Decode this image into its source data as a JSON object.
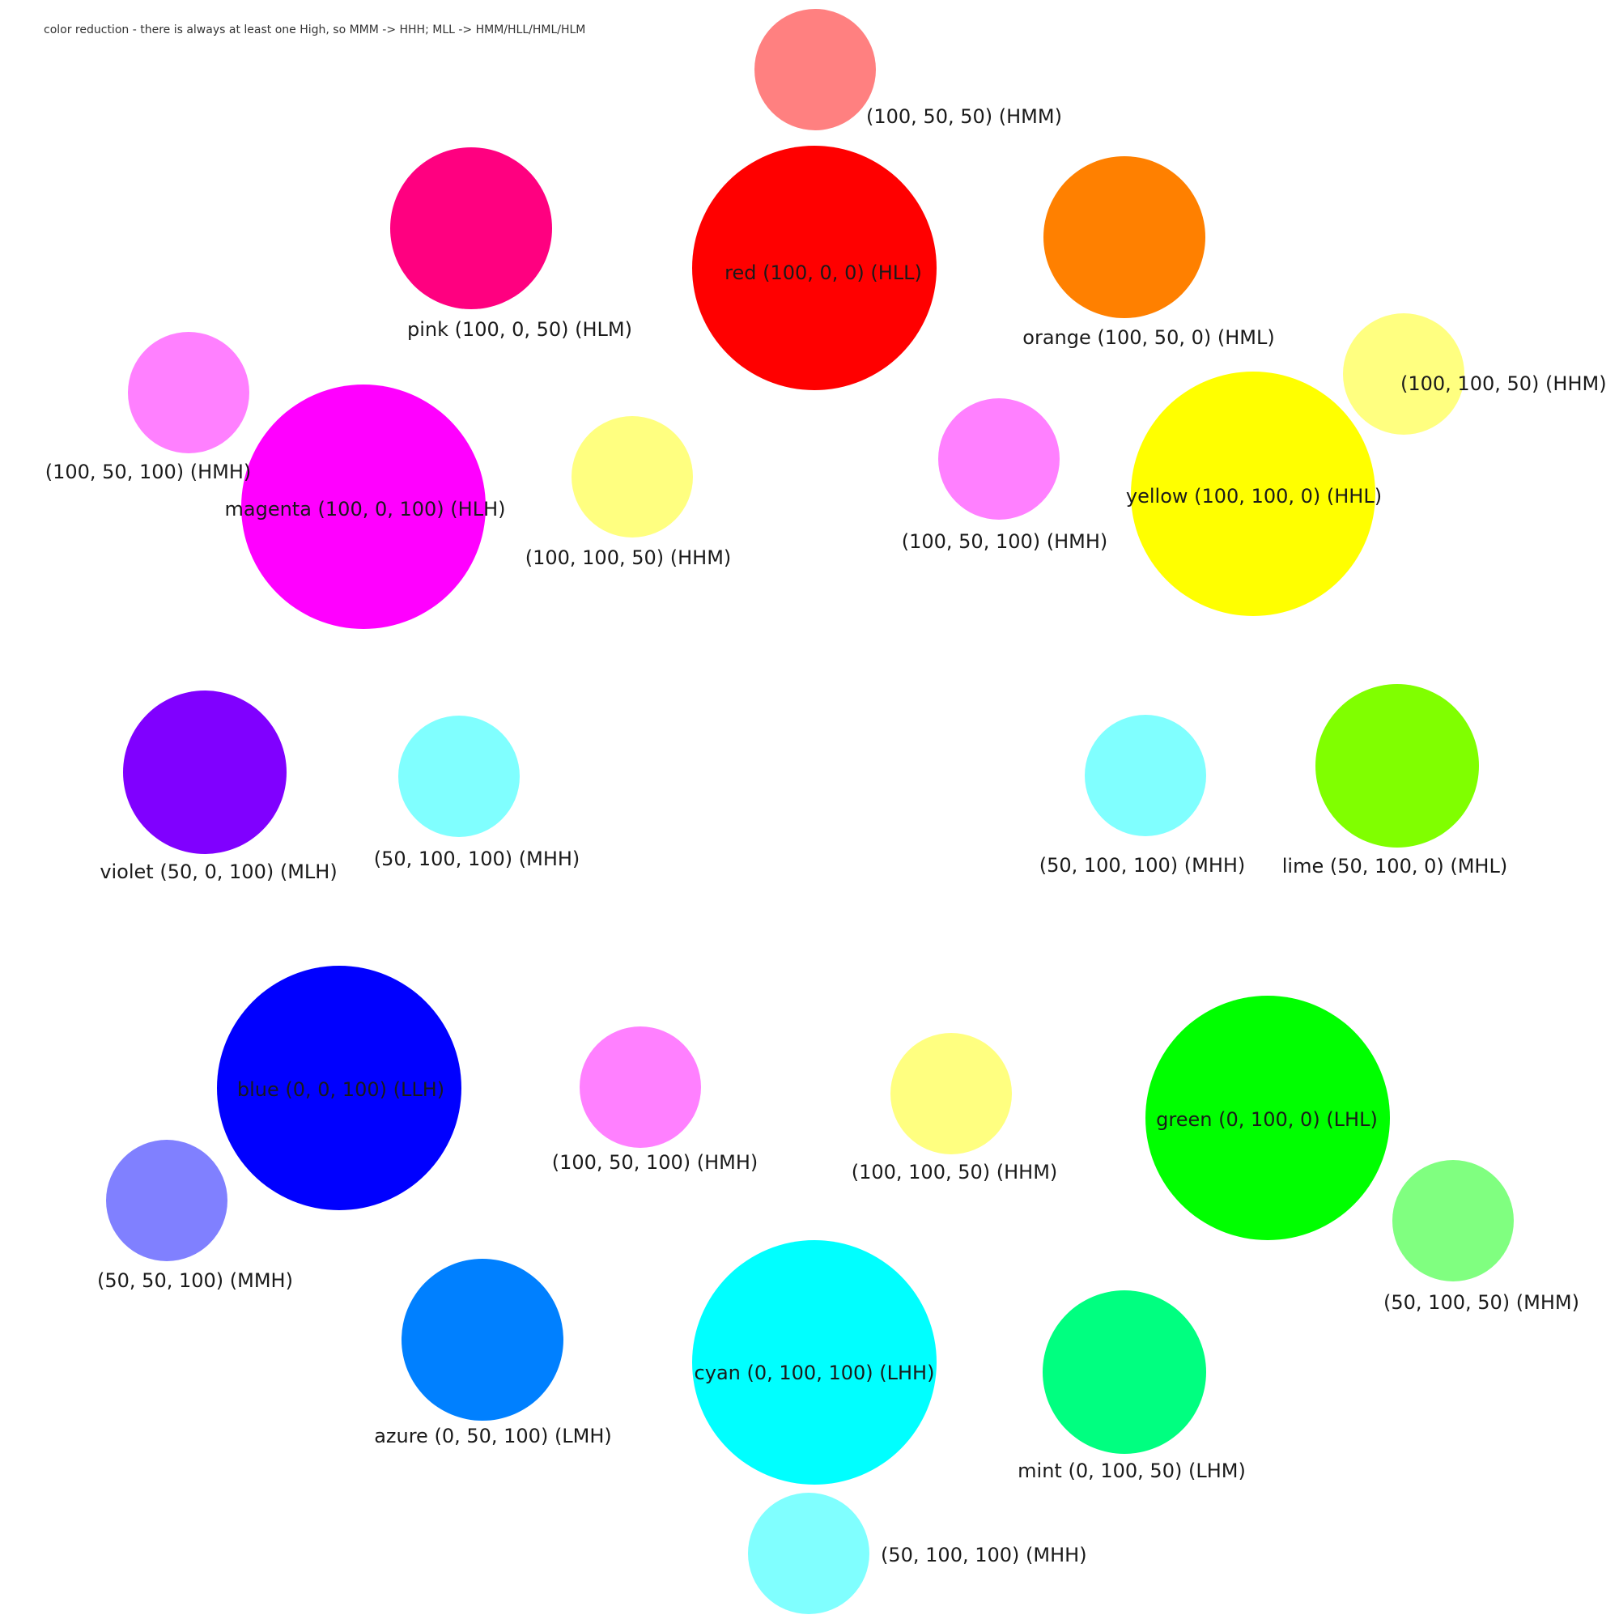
{
  "caption": "color reduction - there is always at least one High, so MMM -> HHH; MLL -> HMM/HLL/HML/HLM",
  "nodes": [
    {
      "label": "(100, 50, 50) (HMM)",
      "color": "#ff8080"
    },
    {
      "label": "red (100, 0, 0) (HLL)",
      "color": "#ff0000"
    },
    {
      "label": "pink (100, 0, 50) (HLM)",
      "color": "#ff0080"
    },
    {
      "label": "orange (100, 50, 0) (HML)",
      "color": "#ff8000"
    },
    {
      "label": "(100, 100, 50) (HHM)",
      "color": "#ffff80"
    },
    {
      "label": "(100, 50, 100) (HMH)",
      "color": "#ff80ff"
    },
    {
      "label": "magenta (100, 0, 100) (HLH)",
      "color": "#ff00ff"
    },
    {
      "label": "(100, 100, 50) (HHM)",
      "color": "#ffff80"
    },
    {
      "label": "(100, 50, 100) (HMH)",
      "color": "#ff80ff"
    },
    {
      "label": "yellow (100, 100, 0) (HHL)",
      "color": "#ffff00"
    },
    {
      "label": "violet (50, 0, 100) (MLH)",
      "color": "#8000ff"
    },
    {
      "label": "(50, 100, 100) (MHH)",
      "color": "#80ffff"
    },
    {
      "label": "(50, 100, 100) (MHH)",
      "color": "#80ffff"
    },
    {
      "label": "lime (50, 100, 0) (MHL)",
      "color": "#80ff00"
    },
    {
      "label": "blue (0, 0, 100) (LLH)",
      "color": "#0000ff"
    },
    {
      "label": "(100, 50, 100) (HMH)",
      "color": "#ff80ff"
    },
    {
      "label": "(100, 100, 50) (HHM)",
      "color": "#ffff80"
    },
    {
      "label": "green (0, 100, 0) (LHL)",
      "color": "#00ff00"
    },
    {
      "label": "(50, 50, 100) (MMH)",
      "color": "#8080ff"
    },
    {
      "label": "(50, 100, 50) (MHM)",
      "color": "#80ff80"
    },
    {
      "label": "azure (0, 50, 100) (LMH)",
      "color": "#0080ff"
    },
    {
      "label": "cyan (0, 100, 100) (LHH)",
      "color": "#00ffff"
    },
    {
      "label": "mint (0, 100, 50) (LHM)",
      "color": "#00ff80"
    },
    {
      "label": "(50, 100, 100) (MHH)",
      "color": "#80ffff"
    }
  ]
}
